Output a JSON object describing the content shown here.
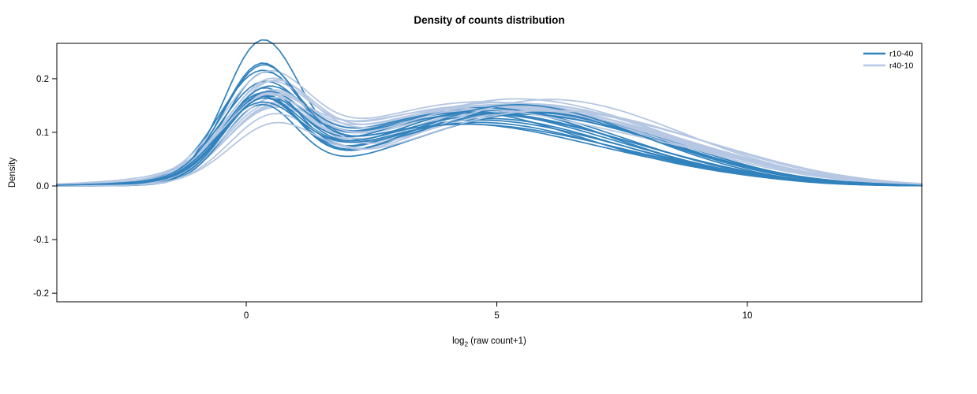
{
  "chart_data": {
    "type": "line",
    "title": "Density of counts distribution",
    "ylabel": "Density",
    "xlabel": {
      "prefix": "log",
      "sub": "2",
      "suffix": " (raw count+1)"
    },
    "xlim": [
      -3.78,
      13.48
    ],
    "ylim": [
      -0.216,
      0.266
    ],
    "xticks": [
      0,
      5,
      10
    ],
    "xtick_labels": [
      "0",
      "5",
      "10"
    ],
    "yticks": [
      -0.2,
      -0.1,
      0.0,
      0.1,
      0.2
    ],
    "ytick_labels": [
      "-0.2",
      "-0.1",
      "0.0",
      "0.1",
      "0.2"
    ],
    "grid": false,
    "legend": {
      "position": "top-right",
      "entries": [
        {
          "label": "r10-40",
          "color": "#3182bd"
        },
        {
          "label": "r40-10",
          "color": "#b5c7e2"
        }
      ]
    },
    "curve_model": "each curve = sum of gaussian components given as [amp, mean, sd] triplets; density y(x) = sum amp*exp(-0.5*((x-mean)/sd)^2)",
    "series": [
      {
        "name": "r10-40",
        "color": "#3182bd",
        "line_width": 1.7,
        "curves": [
          [
            0.235,
            0.3,
            0.72,
            0.115,
            4.2,
            2.6,
            0.015,
            8.5,
            1.8
          ],
          [
            0.2,
            0.28,
            0.75,
            0.12,
            4.5,
            2.5,
            0.018,
            8.2,
            1.9
          ],
          [
            0.19,
            0.35,
            0.78,
            0.125,
            4.8,
            2.4,
            0.012,
            8.8,
            1.7
          ],
          [
            0.175,
            0.25,
            0.8,
            0.13,
            4.4,
            2.7,
            0.02,
            8.0,
            2.0
          ],
          [
            0.165,
            0.32,
            0.76,
            0.14,
            5.0,
            2.3,
            0.01,
            9.0,
            1.6
          ],
          [
            0.16,
            0.3,
            0.82,
            0.135,
            4.6,
            2.6,
            0.016,
            8.4,
            1.8
          ],
          [
            0.155,
            0.27,
            0.74,
            0.128,
            5.2,
            2.5,
            0.022,
            7.8,
            2.1
          ],
          [
            0.15,
            0.33,
            0.79,
            0.142,
            4.9,
            2.4,
            0.014,
            8.6,
            1.7
          ],
          [
            0.148,
            0.29,
            0.77,
            0.132,
            5.4,
            2.6,
            0.018,
            8.1,
            1.9
          ],
          [
            0.145,
            0.36,
            0.81,
            0.138,
            4.3,
            2.5,
            0.011,
            9.2,
            1.6
          ],
          [
            0.142,
            0.26,
            0.75,
            0.126,
            5.1,
            2.7,
            0.019,
            7.9,
            2.0
          ],
          [
            0.14,
            0.31,
            0.8,
            0.145,
            4.7,
            2.4,
            0.013,
            8.7,
            1.8
          ],
          [
            0.138,
            0.28,
            0.73,
            0.122,
            5.5,
            2.5,
            0.021,
            7.6,
            2.2
          ],
          [
            0.135,
            0.34,
            0.78,
            0.136,
            4.4,
            2.6,
            0.015,
            8.3,
            1.9
          ],
          [
            0.132,
            0.3,
            0.76,
            0.13,
            5.0,
            2.8,
            0.017,
            8.0,
            2.0
          ],
          [
            0.13,
            0.24,
            0.82,
            0.118,
            4.6,
            2.5,
            0.012,
            8.9,
            1.7
          ],
          [
            0.15,
            0.31,
            0.77,
            0.148,
            5.3,
            2.3,
            0.016,
            8.5,
            1.8
          ],
          [
            0.185,
            0.29,
            0.74,
            0.11,
            4.1,
            2.7,
            0.02,
            7.7,
            2.1
          ]
        ]
      },
      {
        "name": "r40-10",
        "color": "#b5c7e2",
        "line_width": 1.8,
        "curves": [
          [
            0.105,
            0.45,
            0.85,
            0.135,
            4.8,
            2.8,
            0.03,
            8.5,
            2.2
          ],
          [
            0.115,
            0.5,
            0.88,
            0.14,
            5.0,
            2.7,
            0.028,
            8.8,
            2.1
          ],
          [
            0.12,
            0.4,
            0.83,
            0.145,
            4.6,
            2.9,
            0.025,
            9.0,
            2.0
          ],
          [
            0.125,
            0.48,
            0.86,
            0.138,
            5.2,
            2.6,
            0.032,
            8.2,
            2.3
          ],
          [
            0.13,
            0.42,
            0.84,
            0.15,
            4.9,
            2.8,
            0.022,
            9.3,
            1.9
          ],
          [
            0.135,
            0.46,
            0.87,
            0.142,
            5.4,
            2.5,
            0.027,
            8.6,
            2.1
          ],
          [
            0.14,
            0.38,
            0.82,
            0.148,
            4.5,
            2.9,
            0.024,
            9.1,
            2.0
          ],
          [
            0.145,
            0.44,
            0.85,
            0.152,
            5.1,
            2.6,
            0.029,
            8.4,
            2.2
          ],
          [
            0.148,
            0.41,
            0.88,
            0.136,
            5.6,
            2.7,
            0.026,
            8.9,
            2.0
          ],
          [
            0.15,
            0.47,
            0.84,
            0.144,
            4.7,
            2.8,
            0.031,
            8.1,
            2.3
          ],
          [
            0.152,
            0.39,
            0.86,
            0.146,
            5.3,
            2.5,
            0.023,
            9.4,
            1.9
          ],
          [
            0.155,
            0.43,
            0.83,
            0.14,
            4.8,
            2.9,
            0.028,
            8.7,
            2.1
          ],
          [
            0.158,
            0.49,
            0.87,
            0.134,
            5.5,
            2.6,
            0.025,
            9.0,
            2.0
          ],
          [
            0.16,
            0.37,
            0.85,
            0.15,
            4.4,
            2.8,
            0.03,
            8.3,
            2.2
          ],
          [
            0.128,
            0.45,
            0.84,
            0.147,
            5.0,
            2.7,
            0.027,
            8.8,
            2.1
          ],
          [
            0.118,
            0.51,
            0.86,
            0.139,
            5.7,
            2.5,
            0.033,
            8.0,
            2.4
          ],
          [
            0.11,
            0.36,
            0.83,
            0.143,
            4.3,
            3.0,
            0.026,
            9.2,
            2.0
          ],
          [
            0.1,
            0.53,
            0.88,
            0.137,
            5.8,
            2.6,
            0.024,
            9.5,
            1.9
          ]
        ]
      }
    ]
  }
}
